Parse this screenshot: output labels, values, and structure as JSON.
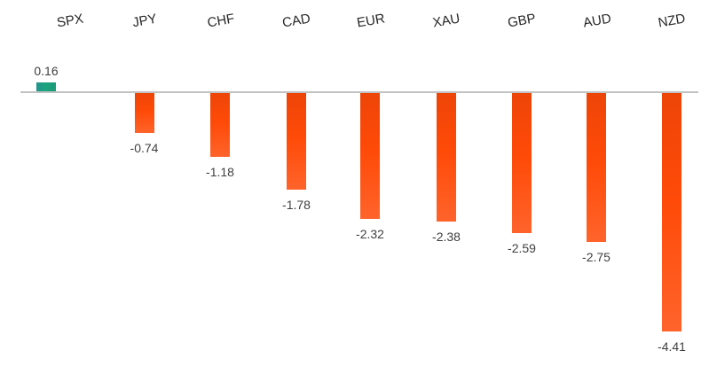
{
  "chart_data": {
    "type": "bar",
    "title": "",
    "xlabel": "",
    "ylabel": "",
    "categories": [
      "SPX",
      "JPY",
      "CHF",
      "CAD",
      "EUR",
      "XAU",
      "GBP",
      "AUD",
      "NZD"
    ],
    "values": [
      0.16,
      -0.74,
      -1.18,
      -1.78,
      -2.32,
      -2.38,
      -2.59,
      -2.75,
      -4.41
    ],
    "value_labels": [
      "0.16",
      "-0.74",
      "-1.18",
      "-1.78",
      "-2.32",
      "-2.38",
      "-2.59",
      "-2.75",
      "-4.41"
    ],
    "series": [
      {
        "name": "positive",
        "color": "#1CA47E",
        "members": [
          "SPX"
        ]
      },
      {
        "name": "negative",
        "color": "#FF4A08",
        "members": [
          "JPY",
          "CHF",
          "CAD",
          "EUR",
          "XAU",
          "GBP",
          "AUD",
          "NZD"
        ]
      }
    ],
    "ylim": [
      -5,
      1.5
    ],
    "grid": false,
    "legend": false,
    "data_labels": true,
    "category_axis_position": "top",
    "category_label_rotation_deg": -10,
    "axis_line_color": "#C2C2C2",
    "label_color": "#3F3F3F",
    "background_color": "#FFFFFF"
  }
}
